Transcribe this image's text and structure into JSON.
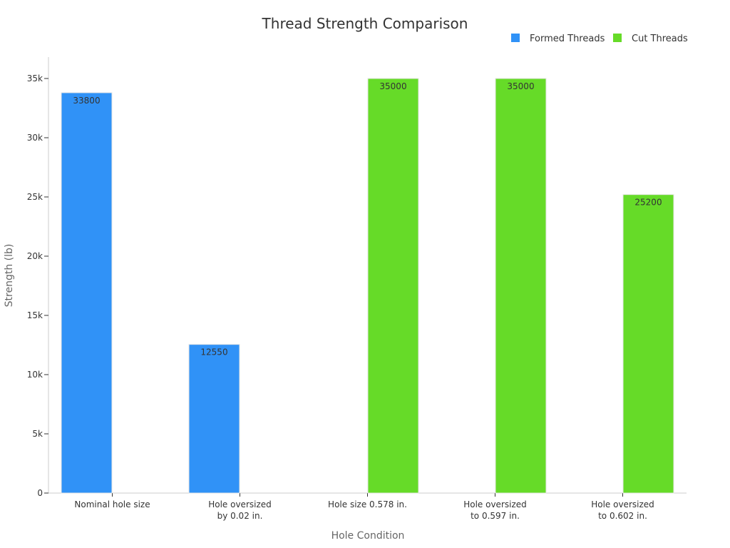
{
  "chart_data": {
    "type": "bar",
    "title": "Thread Strength Comparison",
    "xlabel": "Hole Condition",
    "ylabel": "Strength (lb)",
    "ylim": [
      0,
      37000
    ],
    "yticks": [
      0,
      5000,
      10000,
      15000,
      20000,
      25000,
      30000,
      35000
    ],
    "ytick_labels": [
      "0",
      "5k",
      "10k",
      "15k",
      "20k",
      "25k",
      "30k",
      "35k"
    ],
    "categories": [
      [
        "Nominal hole size"
      ],
      [
        "Hole oversized",
        "by 0.02 in."
      ],
      [
        "Hole size 0.578 in."
      ],
      [
        "Hole oversized",
        "to 0.597 in."
      ],
      [
        "Hole oversized",
        "to 0.602 in."
      ]
    ],
    "series": [
      {
        "name": "Formed Threads",
        "color": "#3092F7",
        "values": [
          33800,
          12550,
          null,
          null,
          null
        ]
      },
      {
        "name": "Cut Threads",
        "color": "#66DB28",
        "values": [
          null,
          null,
          35000,
          35000,
          25200
        ]
      }
    ],
    "legend_position": "top-right",
    "grid": false
  }
}
